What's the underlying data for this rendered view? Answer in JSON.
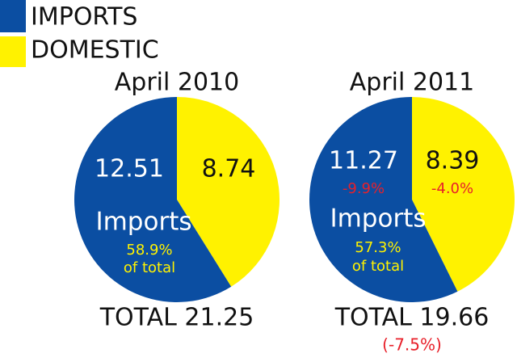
{
  "legend": [
    {
      "name": "IMPORTS",
      "color": "#0b4ea2"
    },
    {
      "name": "DOMESTIC",
      "color": "#fff200"
    }
  ],
  "chart_data": [
    {
      "type": "pie",
      "title": "April 2010",
      "categories": [
        "IMPORTS",
        "DOMESTIC"
      ],
      "values": [
        12.51,
        8.74
      ],
      "colors": [
        "#0b4ea2",
        "#fff200"
      ],
      "annotation": "Imports",
      "share": {
        "value": 58.9,
        "label": "58.9%"
      },
      "share_note": "of total",
      "total": {
        "value": 21.25,
        "label": "TOTAL 21.25"
      }
    },
    {
      "type": "pie",
      "title": "April 2011",
      "categories": [
        "IMPORTS",
        "DOMESTIC"
      ],
      "values": [
        11.27,
        8.39
      ],
      "colors": [
        "#0b4ea2",
        "#fff200"
      ],
      "annotation": "Imports",
      "changes": [
        -9.9,
        -4.0
      ],
      "change_labels": [
        "-9.9%",
        "-4.0%"
      ],
      "share": {
        "value": 57.3,
        "label": "57.3%"
      },
      "share_note": "of total",
      "total": {
        "value": 19.66,
        "label": "TOTAL 19.66"
      },
      "total_change": {
        "value": -7.5,
        "label": "(-7.5%)"
      }
    }
  ]
}
